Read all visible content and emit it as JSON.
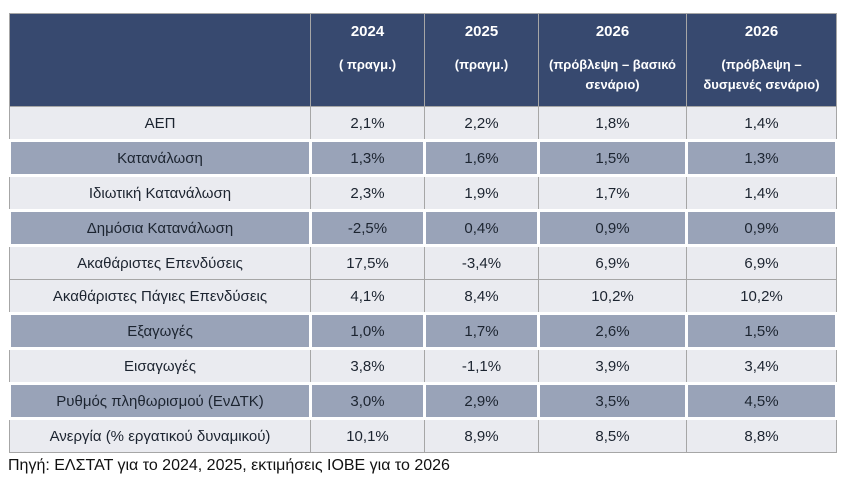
{
  "chart_data": {
    "type": "table",
    "header": [
      {
        "year": "2024",
        "note": "( πραγμ.)"
      },
      {
        "year": "2025",
        "note": "(πραγμ.)"
      },
      {
        "year": "2026",
        "note": "(πρόβλεψη – βασικό\nσενάριο)"
      },
      {
        "year": "2026",
        "note": "(πρόβλεψη –\nδυσμενές σενάριο)"
      }
    ],
    "rows": [
      {
        "label": "ΑΕΠ",
        "values": [
          "2,1%",
          "2,2%",
          "1,8%",
          "1,4%"
        ],
        "shade": "light"
      },
      {
        "label": "Κατανάλωση",
        "values": [
          "1,3%",
          "1,6%",
          "1,5%",
          "1,3%"
        ],
        "shade": "gray"
      },
      {
        "label": "Ιδιωτική Κατανάλωση",
        "values": [
          "2,3%",
          "1,9%",
          "1,7%",
          "1,4%"
        ],
        "shade": "light"
      },
      {
        "label": "Δημόσια Κατανάλωση",
        "values": [
          "-2,5%",
          "0,4%",
          "0,9%",
          "0,9%"
        ],
        "shade": "gray"
      },
      {
        "label": "Ακαθάριστες Επενδύσεις",
        "values": [
          "17,5%",
          "-3,4%",
          "6,9%",
          "6,9%"
        ],
        "shade": "light"
      },
      {
        "label": "Ακαθάριστες Πάγιες Επενδύσεις",
        "values": [
          "4,1%",
          "8,4%",
          "10,2%",
          "10,2%"
        ],
        "shade": "light"
      },
      {
        "label": "Εξαγωγές",
        "values": [
          "1,0%",
          "1,7%",
          "2,6%",
          "1,5%"
        ],
        "shade": "gray"
      },
      {
        "label": "Εισαγωγές",
        "values": [
          "3,8%",
          "-1,1%",
          "3,9%",
          "3,4%"
        ],
        "shade": "light"
      },
      {
        "label": "Ρυθμός πληθωρισμού (ΕνΔΤΚ)",
        "values": [
          "3,0%",
          "2,9%",
          "3,5%",
          "4,5%"
        ],
        "shade": "gray"
      },
      {
        "label": "Ανεργία (% εργατικού δυναμικού)",
        "values": [
          "10,1%",
          "8,9%",
          "8,5%",
          "8,8%"
        ],
        "shade": "light"
      }
    ],
    "footer": "Πηγή: ΕΛΣΤΑΤ για το 2024, 2025, εκτιμήσεις ΙΟΒΕ για το 2026",
    "colors": {
      "header_bg": "#37496F",
      "header_text": "#FFFFFF",
      "row_gray": "#99A3B8",
      "row_light": "#EAEBF0",
      "grid_line": "#A6A6A6",
      "body_text": "#1C2430"
    },
    "layout": {
      "legend": "none",
      "grid": "on"
    }
  }
}
